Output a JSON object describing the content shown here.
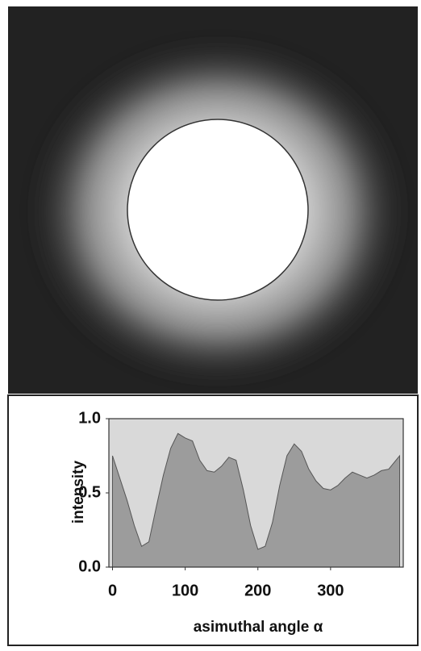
{
  "chart_data": {
    "type": "area",
    "x_label": "asimuthal angle α",
    "y_label": "intensity",
    "x": [
      0,
      10,
      20,
      30,
      40,
      50,
      60,
      70,
      80,
      90,
      100,
      110,
      120,
      130,
      140,
      150,
      160,
      170,
      180,
      190,
      200,
      210,
      220,
      230,
      240,
      250,
      260,
      270,
      280,
      290,
      300,
      310,
      320,
      330,
      340,
      350,
      360,
      370,
      380,
      395
    ],
    "series": [
      {
        "color": "#9c9c9c",
        "values": [
          0.75,
          0.6,
          0.45,
          0.28,
          0.14,
          0.17,
          0.4,
          0.62,
          0.8,
          0.9,
          0.87,
          0.85,
          0.72,
          0.65,
          0.64,
          0.68,
          0.74,
          0.72,
          0.52,
          0.28,
          0.12,
          0.14,
          0.3,
          0.55,
          0.75,
          0.83,
          0.78,
          0.66,
          0.58,
          0.53,
          0.52,
          0.55,
          0.6,
          0.64,
          0.62,
          0.6,
          0.62,
          0.65,
          0.66,
          0.75
        ]
      }
    ],
    "xlim": [
      -5,
      400
    ],
    "ylim": [
      0,
      1
    ],
    "xticks": [
      0,
      100,
      200,
      300
    ],
    "yticks": [
      {
        "value": 0,
        "label": "0.0"
      },
      0.5,
      {
        "value": 1,
        "label": "1.0"
      }
    ],
    "background": "#d9d9d9"
  }
}
